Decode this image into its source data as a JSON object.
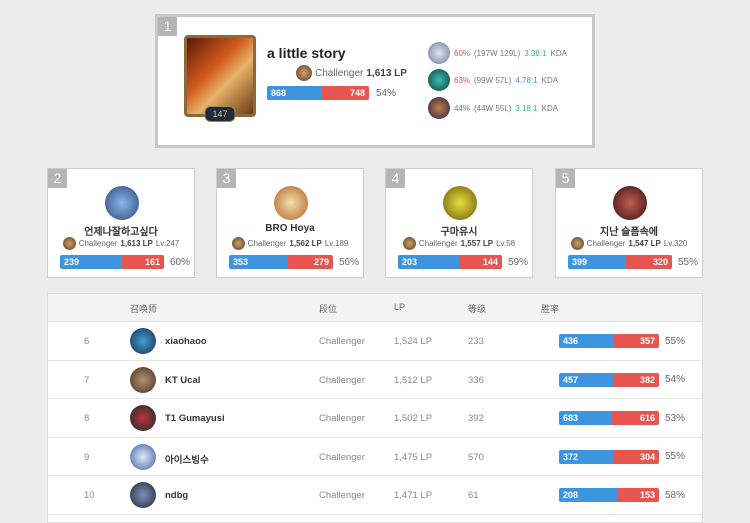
{
  "colors": {
    "win": "#3d95e0",
    "loss": "#e8554e"
  },
  "top": {
    "rank": "1",
    "name": "a little story",
    "level": "147",
    "tier": "Challenger",
    "lp": "1,613 LP",
    "wins": 868,
    "losses": 748,
    "winrate": "54%",
    "champions": [
      {
        "wr": "60%",
        "record": "(197W 129L)",
        "kda": "3.38:1",
        "kda_label": "KDA",
        "kda_color": "green",
        "wr_color": "red"
      },
      {
        "wr": "63%",
        "record": "(99W 57L)",
        "kda": "4.78:1",
        "kda_label": "KDA",
        "kda_color": "blue",
        "wr_color": "red"
      },
      {
        "wr": "44%",
        "record": "(44W 55L)",
        "kda": "3.18:1",
        "kda_label": "KDA",
        "kda_color": "green",
        "wr_color": ""
      }
    ]
  },
  "cards": [
    {
      "rank": "2",
      "name": "언제나잘하고싶다",
      "tier": "Challenger",
      "lp": "1,613 LP",
      "level": "Lv.247",
      "wins": 239,
      "losses": 161,
      "winrate": "60%"
    },
    {
      "rank": "3",
      "name": "BRO Hoya",
      "tier": "Challenger",
      "lp": "1,562 LP",
      "level": "Lv.189",
      "wins": 353,
      "losses": 279,
      "winrate": "56%"
    },
    {
      "rank": "4",
      "name": "구마유시",
      "tier": "Challenger",
      "lp": "1,557 LP",
      "level": "Lv.58",
      "wins": 203,
      "losses": 144,
      "winrate": "59%"
    },
    {
      "rank": "5",
      "name": "지난 슬픔속에",
      "tier": "Challenger",
      "lp": "1,547 LP",
      "level": "Lv.320",
      "wins": 399,
      "losses": 320,
      "winrate": "55%"
    }
  ],
  "table": {
    "headers": {
      "summoner": "召唤师",
      "tier": "段位",
      "lp": "LP",
      "level": "等级",
      "winrate": "胜率"
    },
    "rows": [
      {
        "rank": "6",
        "name": "xiaohaoo",
        "tier": "Challenger",
        "lp": "1,524 LP",
        "level": "233",
        "wins": 436,
        "losses": 357,
        "winrate": "55%"
      },
      {
        "rank": "7",
        "name": "KT Ucal",
        "tier": "Challenger",
        "lp": "1,512 LP",
        "level": "336",
        "wins": 457,
        "losses": 382,
        "winrate": "54%"
      },
      {
        "rank": "8",
        "name": "T1 Gumayusi",
        "tier": "Challenger",
        "lp": "1,502 LP",
        "level": "392",
        "wins": 683,
        "losses": 616,
        "winrate": "53%"
      },
      {
        "rank": "9",
        "name": "아이스빙수",
        "tier": "Challenger",
        "lp": "1,475 LP",
        "level": "570",
        "wins": 372,
        "losses": 304,
        "winrate": "55%"
      },
      {
        "rank": "10",
        "name": "ndbg",
        "tier": "Challenger",
        "lp": "1,471 LP",
        "level": "61",
        "wins": 208,
        "losses": 153,
        "winrate": "58%"
      }
    ]
  }
}
